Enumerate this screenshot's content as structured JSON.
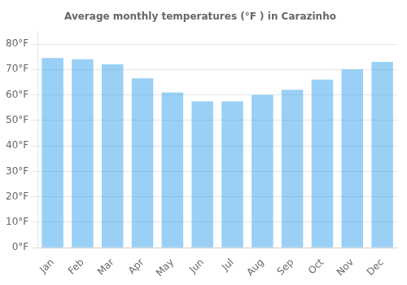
{
  "chart_data": {
    "type": "bar",
    "title": "Average monthly temperatures (°F ) in Carazinho",
    "categories": [
      "Jan",
      "Feb",
      "Mar",
      "Apr",
      "May",
      "Jun",
      "Jul",
      "Aug",
      "Sep",
      "Oct",
      "Nov",
      "Dec"
    ],
    "values": [
      74.5,
      74.0,
      72.0,
      66.5,
      61.0,
      57.5,
      57.5,
      60.0,
      62.0,
      66.0,
      70.0,
      73.0
    ],
    "ylim": [
      0,
      85
    ],
    "yticks": [
      {
        "value": 0,
        "label": "0°F"
      },
      {
        "value": 10,
        "label": "10°F"
      },
      {
        "value": 20,
        "label": "20°F"
      },
      {
        "value": 30,
        "label": "30°F"
      },
      {
        "value": 40,
        "label": "40°F"
      },
      {
        "value": 50,
        "label": "50°F"
      },
      {
        "value": 60,
        "label": "60°F"
      },
      {
        "value": 70,
        "label": "70°F"
      },
      {
        "value": 80,
        "label": "80°F"
      }
    ],
    "grid": true
  }
}
